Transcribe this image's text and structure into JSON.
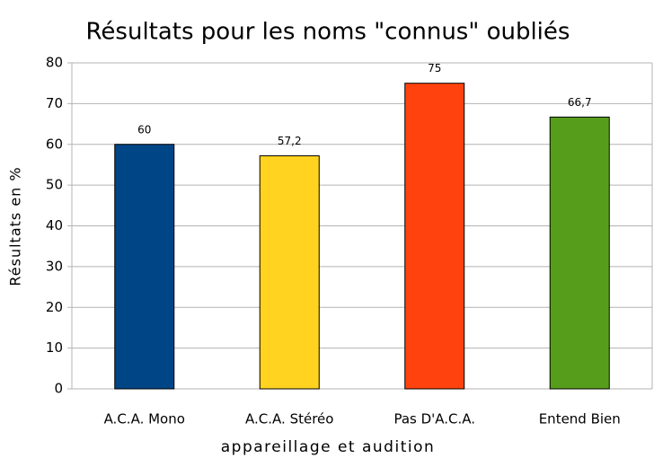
{
  "chart_data": {
    "type": "bar",
    "title": "Résultats pour les noms \"connus\" oubliés",
    "x_label": "appareillage et audition",
    "y_label": "Résultats en %",
    "categories": [
      "A.C.A. Mono",
      "A.C.A. Stéréo",
      "Pas D'A.C.A.",
      "Entend Bien"
    ],
    "values": [
      60,
      57.2,
      75,
      66.7
    ],
    "value_labels": [
      "60",
      "57,2",
      "75",
      "66,7"
    ],
    "colors": [
      "#004586",
      "#ffd320",
      "#ff420e",
      "#579d1c"
    ],
    "ylim": [
      0,
      80
    ],
    "yticks": [
      0,
      10,
      20,
      30,
      40,
      50,
      60,
      70,
      80
    ],
    "grid": true
  }
}
